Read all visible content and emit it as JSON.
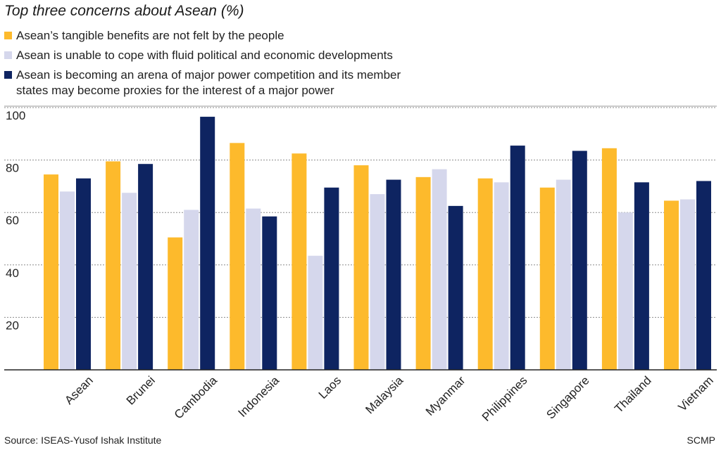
{
  "chart_data": {
    "type": "bar",
    "title": "Top three concerns about Asean (%)",
    "categories": [
      "Asean",
      "Brunei",
      "Cambodia",
      "Indonesia",
      "Laos",
      "Malaysia",
      "Myanmar",
      "Philippines",
      "Singapore",
      "Thailand",
      "Vietnam"
    ],
    "series": [
      {
        "name": "Asean’s tangible benefits are not felt by the people",
        "color": "#FDBA2C",
        "values": [
          74.5,
          79.5,
          50.5,
          86.5,
          82.5,
          78,
          73.5,
          73,
          69.5,
          84.5,
          64.5
        ]
      },
      {
        "name": "Asean is unable to cope with fluid political and economic developments",
        "color": "#D5D7EC",
        "values": [
          68,
          67.5,
          61,
          61.5,
          43.5,
          67,
          76.5,
          71.5,
          72.5,
          60,
          65
        ]
      },
      {
        "name": "Asean is becoming an arena of major power competition and its member states may become proxies for the interest of a major power",
        "color": "#0E2461",
        "values": [
          73,
          78.5,
          96.5,
          58.5,
          69.5,
          72.5,
          62.5,
          85.5,
          83.5,
          71.5,
          72
        ]
      }
    ],
    "yticks": [
      20,
      40,
      60,
      80,
      100
    ],
    "ylim": [
      0,
      100
    ],
    "grid": true,
    "legend_position": "top-left"
  },
  "legend": {
    "item1": "Asean’s tangible benefits are not felt by the people",
    "item2": "Asean is unable to cope with fluid political and economic developments",
    "item3_line1": "Asean is becoming an arena of major power competition and its member",
    "item3_line2": "states may become proxies for the interest of a major power"
  },
  "footer": {
    "source": "Source: ISEAS-Yusof Ishak Institute",
    "credit": "SCMP"
  }
}
